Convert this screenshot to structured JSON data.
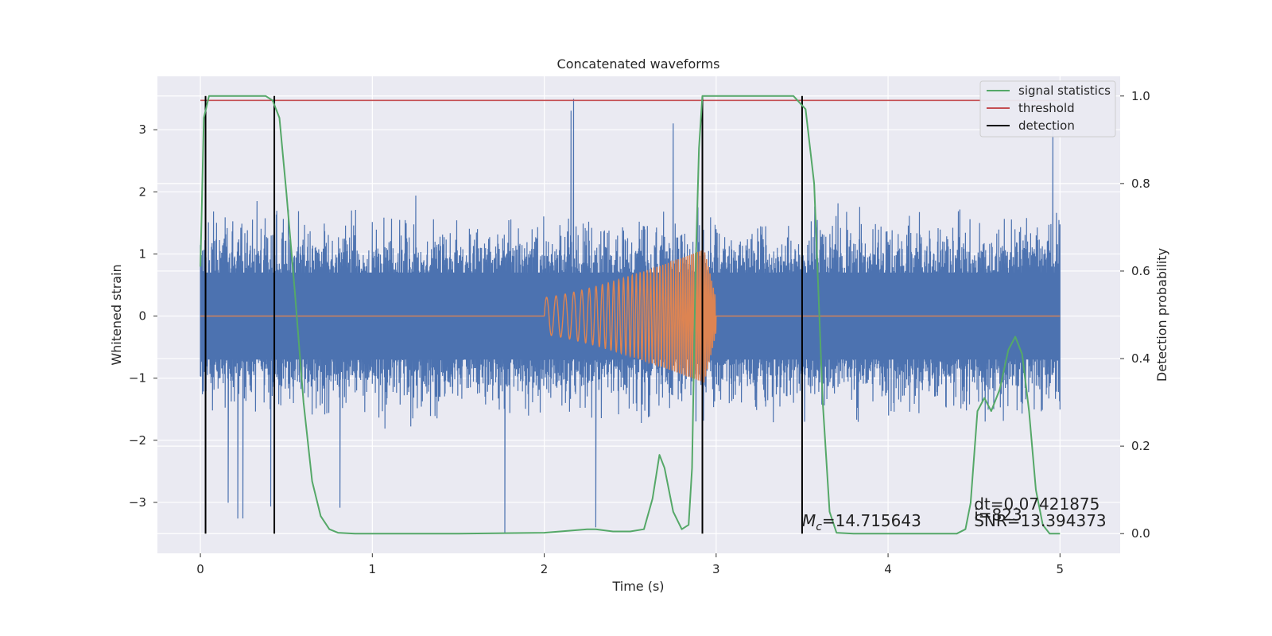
{
  "chart_data": {
    "type": "line",
    "title": "Concatenated waveforms",
    "xlabel": "Time (s)",
    "ylabel": "Whitened strain",
    "y2label": "Detection probability",
    "xlim": [
      -0.25,
      5.35
    ],
    "ylim": [
      -3.82,
      3.86
    ],
    "y2lim": [
      -0.045,
      1.045
    ],
    "x_ticks": [
      0,
      1,
      2,
      3,
      4,
      5
    ],
    "y_ticks": [
      -3,
      -2,
      -1,
      0,
      1,
      2,
      3
    ],
    "y2_ticks": [
      0.0,
      0.2,
      0.4,
      0.6,
      0.8,
      1.0
    ],
    "x_tick_labels": [
      "0",
      "1",
      "2",
      "3",
      "4",
      "5"
    ],
    "y_tick_labels": [
      "−3",
      "−2",
      "−1",
      "0",
      "1",
      "2",
      "3"
    ],
    "y2_tick_labels": [
      "0.0",
      "0.2",
      "0.4",
      "0.6",
      "0.8",
      "1.0"
    ],
    "grid": true,
    "legend_position": "top-right",
    "colors": {
      "noise": "#4c72b0",
      "waveform": "#dd8452",
      "signal_statistics": "#55a868",
      "threshold": "#c44e52",
      "detection": "#000000",
      "axes_background": "#eaeaf2"
    },
    "series": [
      {
        "name": "signal statistics",
        "axis": "right",
        "x": [
          0.0,
          0.02,
          0.05,
          0.1,
          0.2,
          0.38,
          0.42,
          0.46,
          0.5,
          0.55,
          0.6,
          0.65,
          0.7,
          0.75,
          0.8,
          0.9,
          1.5,
          2.0,
          2.25,
          2.3,
          2.4,
          2.5,
          2.58,
          2.63,
          2.67,
          2.7,
          2.75,
          2.8,
          2.84,
          2.86,
          2.88,
          2.9,
          2.92,
          2.95,
          3.1,
          3.45,
          3.52,
          3.57,
          3.62,
          3.66,
          3.7,
          3.8,
          4.0,
          4.4,
          4.45,
          4.48,
          4.52,
          4.56,
          4.6,
          4.65,
          4.7,
          4.74,
          4.78,
          4.82,
          4.86,
          4.9,
          4.94,
          5.0
        ],
        "values": [
          0.61,
          0.95,
          1.0,
          1.0,
          1.0,
          1.0,
          0.99,
          0.95,
          0.78,
          0.55,
          0.3,
          0.12,
          0.04,
          0.01,
          0.002,
          0.0,
          0.0,
          0.002,
          0.01,
          0.01,
          0.005,
          0.005,
          0.01,
          0.08,
          0.18,
          0.15,
          0.05,
          0.01,
          0.02,
          0.15,
          0.6,
          0.88,
          1.0,
          1.0,
          1.0,
          1.0,
          0.97,
          0.8,
          0.3,
          0.05,
          0.002,
          0.0,
          0.0,
          0.0,
          0.01,
          0.07,
          0.28,
          0.31,
          0.28,
          0.33,
          0.42,
          0.45,
          0.41,
          0.28,
          0.1,
          0.02,
          0.0,
          0.0
        ]
      },
      {
        "name": "threshold",
        "axis": "right",
        "x": [
          0.0,
          5.0
        ],
        "values": [
          0.99,
          0.99
        ]
      },
      {
        "name": "detection",
        "axis": "right",
        "x": [
          0.03,
          0.43,
          2.92,
          3.5
        ],
        "values": [
          1.0,
          1.0,
          1.0,
          1.0
        ]
      },
      {
        "axis": "left",
        "description": "whitened noisy strain, 0–5 s, dense band about ±0.7 with spikes to about ±3.5",
        "x_range": [
          0.0,
          5.0
        ],
        "values": []
      },
      {
        "axis": "left",
        "description": "injected chirp waveform, zero outside 2.0–3.0 s",
        "x_range": [
          0.0,
          5.0
        ],
        "chirp_start": 2.0,
        "chirp_end": 3.0,
        "amplitude_start": 0.3,
        "amplitude_peak": 1.15,
        "values": []
      }
    ],
    "annotations": [
      {
        "text": "dt=0.07421875",
        "x": 4.5,
        "y": 0.055
      },
      {
        "text": " i=823",
        "x": 4.5,
        "y": 0.03
      },
      {
        "text": "SNR=13.394373",
        "x": 4.5,
        "y": 0.017
      },
      {
        "text_math_symbol": "M",
        "text_math_subscript": "c",
        "text": "=14.715643",
        "x": 3.5,
        "y": 0.017
      }
    ]
  }
}
